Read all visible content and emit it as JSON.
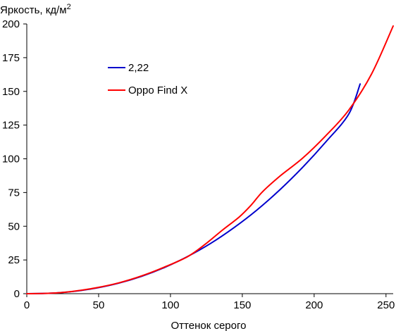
{
  "chart_data": {
    "type": "line",
    "ylabel": "Яркость, кд/м",
    "ylabel_sup": "2",
    "xlabel": "Оттенок серого",
    "xlim": [
      0,
      255
    ],
    "ylim": [
      0,
      200
    ],
    "x_ticks": [
      "0",
      "50",
      "100",
      "150",
      "200",
      "250"
    ],
    "y_ticks": [
      "0",
      "25",
      "50",
      "75",
      "100",
      "125",
      "150",
      "175",
      "200"
    ],
    "grid": false,
    "legend_position": "upper-left",
    "series": [
      {
        "name": "2,22",
        "color": "#0000cc",
        "x": [
          0,
          16,
          32,
          48,
          64,
          80,
          96,
          112,
          128,
          144,
          160,
          176,
          192,
          208,
          224,
          232
        ],
        "y": [
          0,
          0.3,
          1.6,
          4.1,
          7.8,
          12.9,
          19.5,
          27.6,
          37.3,
          48.8,
          61.9,
          76.9,
          93.7,
          112.4,
          133.0,
          155.5
        ]
      },
      {
        "name": "Oppo Find X",
        "color": "#ff0000",
        "x": [
          0,
          16,
          32,
          48,
          64,
          80,
          96,
          112,
          124,
          136,
          148,
          156,
          164,
          176,
          192,
          208,
          224,
          240,
          255
        ],
        "y": [
          0,
          0.3,
          1.7,
          4.3,
          8.0,
          13.2,
          19.8,
          27.5,
          36.5,
          47.0,
          57.0,
          65.5,
          75.5,
          87.0,
          100.5,
          117.0,
          136.0,
          163.0,
          198.5
        ]
      }
    ]
  }
}
